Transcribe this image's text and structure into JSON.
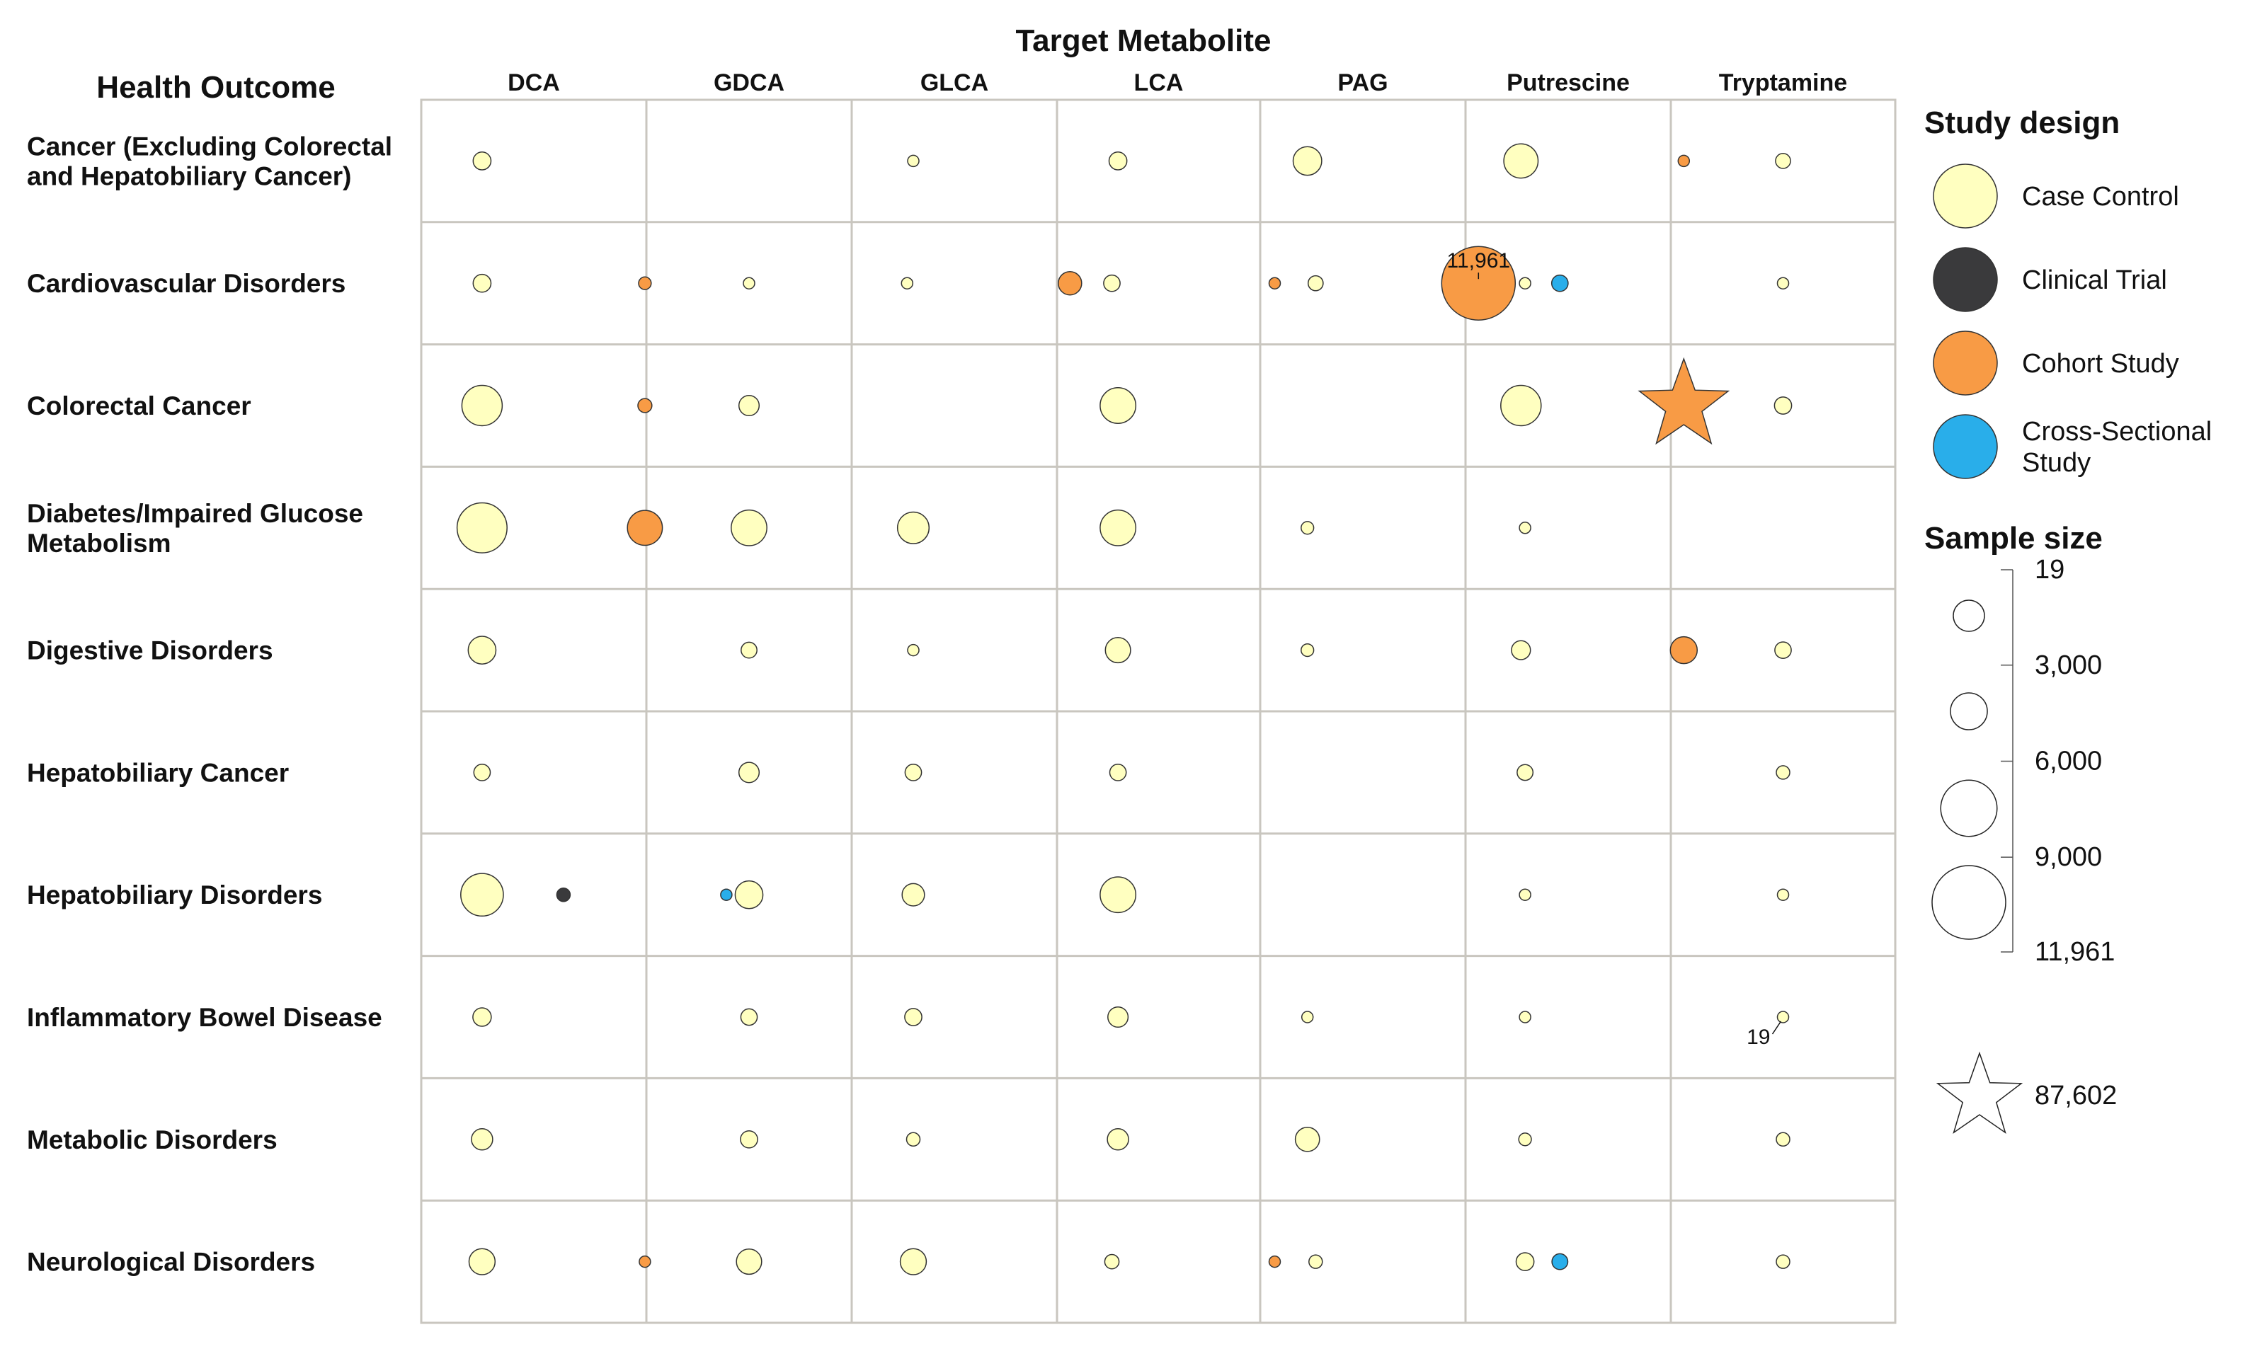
{
  "chart_data": {
    "type": "scatter",
    "title": "Target Metabolite",
    "row_axis_title": "Health Outcome",
    "columns": [
      "DCA",
      "GDCA",
      "GLCA",
      "LCA",
      "PAG",
      "Putrescine",
      "Tryptamine"
    ],
    "rows": [
      [
        "Cancer (Excluding Colorectal",
        "and Hepatobiliary Cancer)"
      ],
      [
        "Cardiovascular Disorders"
      ],
      [
        "Colorectal Cancer"
      ],
      [
        "Diabetes/Impaired Glucose",
        "Metabolism"
      ],
      [
        "Digestive Disorders"
      ],
      [
        "Hepatobiliary Cancer"
      ],
      [
        "Hepatobiliary Disorders"
      ],
      [
        "Inflammatory Bowel Disease"
      ],
      [
        "Metabolic Disorders"
      ],
      [
        "Neurological Disorders"
      ]
    ],
    "design_colors": {
      "Case Control": "#FFFFC0",
      "Clinical Trial": "#3A3A3C",
      "Cohort Study": "#F89B45",
      "Cross-Sectional Study": "#29AEEA"
    },
    "points": [
      {
        "row": 0,
        "col": 0,
        "design": "Case Control",
        "n": 700
      },
      {
        "row": 0,
        "col": 2,
        "design": "Case Control",
        "n": 270
      },
      {
        "row": 0,
        "col": 3,
        "design": "Case Control",
        "n": 700
      },
      {
        "row": 0,
        "col": 4,
        "design": "Case Control",
        "n": 1800
      },
      {
        "row": 0,
        "col": 5,
        "design": "Case Control",
        "n": 2600
      },
      {
        "row": 0,
        "col": 5,
        "design": "Cohort Study",
        "n": 150
      },
      {
        "row": 0,
        "col": 6,
        "design": "Case Control",
        "n": 500
      },
      {
        "row": 1,
        "col": 0,
        "design": "Case Control",
        "n": 700
      },
      {
        "row": 1,
        "col": 0,
        "design": "Cohort Study",
        "n": 350
      },
      {
        "row": 1,
        "col": 1,
        "design": "Case Control",
        "n": 120
      },
      {
        "row": 1,
        "col": 2,
        "design": "Case Control",
        "n": 120
      },
      {
        "row": 1,
        "col": 2,
        "design": "Cohort Study",
        "n": 1200
      },
      {
        "row": 1,
        "col": 3,
        "design": "Case Control",
        "n": 600
      },
      {
        "row": 1,
        "col": 3,
        "design": "Cohort Study",
        "n": 230
      },
      {
        "row": 1,
        "col": 4,
        "design": "Case Control",
        "n": 500
      },
      {
        "row": 1,
        "col": 4,
        "design": "Cohort Study",
        "n": 11961,
        "label": "11,961"
      },
      {
        "row": 1,
        "col": 4,
        "design": "Cross-Sectional Study",
        "n": 600
      },
      {
        "row": 1,
        "col": 5,
        "design": "Case Control",
        "n": 230
      },
      {
        "row": 1,
        "col": 6,
        "design": "Case Control",
        "n": 170
      },
      {
        "row": 2,
        "col": 0,
        "design": "Case Control",
        "n": 3600
      },
      {
        "row": 2,
        "col": 0,
        "design": "Cohort Study",
        "n": 430
      },
      {
        "row": 2,
        "col": 1,
        "design": "Case Control",
        "n": 900
      },
      {
        "row": 2,
        "col": 3,
        "design": "Case Control",
        "n": 2800
      },
      {
        "row": 2,
        "col": 5,
        "design": "Case Control",
        "n": 3600
      },
      {
        "row": 2,
        "col": 5,
        "design": "Cohort Study",
        "n": 87602,
        "shape": "star"
      },
      {
        "row": 2,
        "col": 6,
        "design": "Case Control",
        "n": 650
      },
      {
        "row": 3,
        "col": 0,
        "design": "Case Control",
        "n": 5500
      },
      {
        "row": 3,
        "col": 0,
        "design": "Cohort Study",
        "n": 2700
      },
      {
        "row": 3,
        "col": 1,
        "design": "Case Control",
        "n": 2800
      },
      {
        "row": 3,
        "col": 2,
        "design": "Case Control",
        "n": 2200
      },
      {
        "row": 3,
        "col": 3,
        "design": "Case Control",
        "n": 2800
      },
      {
        "row": 3,
        "col": 4,
        "design": "Case Control",
        "n": 350
      },
      {
        "row": 3,
        "col": 5,
        "design": "Case Control",
        "n": 280
      },
      {
        "row": 4,
        "col": 0,
        "design": "Case Control",
        "n": 1700
      },
      {
        "row": 4,
        "col": 1,
        "design": "Case Control",
        "n": 550
      },
      {
        "row": 4,
        "col": 2,
        "design": "Case Control",
        "n": 250
      },
      {
        "row": 4,
        "col": 3,
        "design": "Case Control",
        "n": 1400
      },
      {
        "row": 4,
        "col": 4,
        "design": "Case Control",
        "n": 350
      },
      {
        "row": 4,
        "col": 5,
        "design": "Case Control",
        "n": 800
      },
      {
        "row": 4,
        "col": 5,
        "design": "Cohort Study",
        "n": 1600
      },
      {
        "row": 4,
        "col": 6,
        "design": "Case Control",
        "n": 600
      },
      {
        "row": 5,
        "col": 0,
        "design": "Case Control",
        "n": 600
      },
      {
        "row": 5,
        "col": 1,
        "design": "Case Control",
        "n": 900
      },
      {
        "row": 5,
        "col": 2,
        "design": "Case Control",
        "n": 600
      },
      {
        "row": 5,
        "col": 3,
        "design": "Case Control",
        "n": 600
      },
      {
        "row": 5,
        "col": 5,
        "design": "Case Control",
        "n": 550
      },
      {
        "row": 5,
        "col": 6,
        "design": "Case Control",
        "n": 400
      },
      {
        "row": 6,
        "col": 0,
        "design": "Case Control",
        "n": 4000
      },
      {
        "row": 6,
        "col": 0,
        "design": "Clinical Trial",
        "n": 400
      },
      {
        "row": 6,
        "col": 0,
        "design": "Cross-Sectional Study",
        "n": 150
      },
      {
        "row": 6,
        "col": 1,
        "design": "Case Control",
        "n": 1700
      },
      {
        "row": 6,
        "col": 2,
        "design": "Case Control",
        "n": 1100
      },
      {
        "row": 6,
        "col": 3,
        "design": "Case Control",
        "n": 2800
      },
      {
        "row": 6,
        "col": 5,
        "design": "Case Control",
        "n": 230
      },
      {
        "row": 6,
        "col": 6,
        "design": "Case Control",
        "n": 150
      },
      {
        "row": 7,
        "col": 0,
        "design": "Case Control",
        "n": 750
      },
      {
        "row": 7,
        "col": 1,
        "design": "Case Control",
        "n": 600
      },
      {
        "row": 7,
        "col": 2,
        "design": "Case Control",
        "n": 650
      },
      {
        "row": 7,
        "col": 3,
        "design": "Case Control",
        "n": 900
      },
      {
        "row": 7,
        "col": 4,
        "design": "Case Control",
        "n": 200
      },
      {
        "row": 7,
        "col": 5,
        "design": "Case Control",
        "n": 230
      },
      {
        "row": 7,
        "col": 6,
        "design": "Case Control",
        "n": 19,
        "label": "19"
      },
      {
        "row": 8,
        "col": 0,
        "design": "Case Control",
        "n": 1000
      },
      {
        "row": 8,
        "col": 1,
        "design": "Case Control",
        "n": 650
      },
      {
        "row": 8,
        "col": 2,
        "design": "Case Control",
        "n": 400
      },
      {
        "row": 8,
        "col": 3,
        "design": "Case Control",
        "n": 1000
      },
      {
        "row": 8,
        "col": 4,
        "design": "Case Control",
        "n": 1300
      },
      {
        "row": 8,
        "col": 5,
        "design": "Case Control",
        "n": 350
      },
      {
        "row": 8,
        "col": 6,
        "design": "Case Control",
        "n": 400
      },
      {
        "row": 9,
        "col": 0,
        "design": "Case Control",
        "n": 1500
      },
      {
        "row": 9,
        "col": 0,
        "design": "Cohort Study",
        "n": 170
      },
      {
        "row": 9,
        "col": 1,
        "design": "Case Control",
        "n": 1400
      },
      {
        "row": 9,
        "col": 2,
        "design": "Case Control",
        "n": 1500
      },
      {
        "row": 9,
        "col": 3,
        "design": "Case Control",
        "n": 450
      },
      {
        "row": 9,
        "col": 3,
        "design": "Cohort Study",
        "n": 170
      },
      {
        "row": 9,
        "col": 4,
        "design": "Case Control",
        "n": 400
      },
      {
        "row": 9,
        "col": 4,
        "design": "Cross-Sectional Study",
        "n": 550
      },
      {
        "row": 9,
        "col": 5,
        "design": "Case Control",
        "n": 700
      },
      {
        "row": 9,
        "col": 6,
        "design": "Case Control",
        "n": 400
      }
    ],
    "legend": {
      "design_title": "Study design",
      "design_items": [
        {
          "name": "Case Control",
          "lines": [
            "Case Control"
          ]
        },
        {
          "name": "Clinical Trial",
          "lines": [
            "Clinical Trial"
          ]
        },
        {
          "name": "Cohort Study",
          "lines": [
            "Cohort Study"
          ]
        },
        {
          "name": "Cross-Sectional Study",
          "lines": [
            "Cross-Sectional",
            "Study"
          ]
        }
      ],
      "size_title": "Sample size",
      "size_values": [
        19,
        3000,
        6000,
        9000,
        11961
      ],
      "size_labels": [
        "19",
        "3,000",
        "6,000",
        "9,000",
        "11,961"
      ],
      "star_value": 87602,
      "star_label": "87,602"
    }
  }
}
